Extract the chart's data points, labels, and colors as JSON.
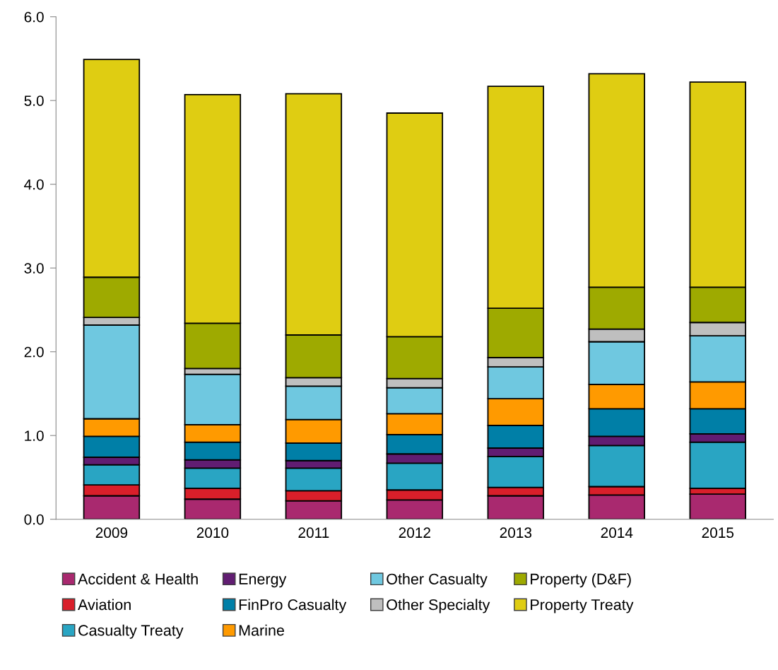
{
  "chart_data": {
    "type": "bar",
    "stacked": true,
    "categories": [
      "2009",
      "2010",
      "2011",
      "2012",
      "2013",
      "2014",
      "2015"
    ],
    "ylim": [
      0,
      6
    ],
    "yticks": [
      {
        "value": 0,
        "label": "0.0"
      },
      {
        "value": 1,
        "label": "1.0"
      },
      {
        "value": 2,
        "label": "2.0"
      },
      {
        "value": 3,
        "label": "3.0"
      },
      {
        "value": 4,
        "label": "4.0"
      },
      {
        "value": 5,
        "label": "5.0"
      },
      {
        "value": 6,
        "label": "6.0"
      }
    ],
    "grid": false,
    "legend": "bottom",
    "series": [
      {
        "name": "Accident & Health",
        "color": "#a9296f",
        "values": [
          0.28,
          0.24,
          0.22,
          0.23,
          0.28,
          0.29,
          0.3
        ]
      },
      {
        "name": "Aviation",
        "color": "#d91f2a",
        "values": [
          0.13,
          0.13,
          0.12,
          0.12,
          0.1,
          0.1,
          0.07
        ]
      },
      {
        "name": "Casualty Treaty",
        "color": "#29a5c3",
        "values": [
          0.24,
          0.24,
          0.27,
          0.32,
          0.37,
          0.49,
          0.55
        ]
      },
      {
        "name": "Energy",
        "color": "#611d72",
        "values": [
          0.09,
          0.1,
          0.09,
          0.11,
          0.1,
          0.11,
          0.1
        ]
      },
      {
        "name": "FinPro Casualty",
        "color": "#007fa7",
        "values": [
          0.25,
          0.21,
          0.21,
          0.23,
          0.27,
          0.33,
          0.3
        ]
      },
      {
        "name": "Marine",
        "color": "#ff9a00",
        "values": [
          0.21,
          0.21,
          0.28,
          0.25,
          0.32,
          0.29,
          0.32
        ]
      },
      {
        "name": "Other Casualty",
        "color": "#6fc8e0",
        "values": [
          1.12,
          0.6,
          0.4,
          0.31,
          0.38,
          0.51,
          0.55
        ]
      },
      {
        "name": "Other Specialty",
        "color": "#bfbfbf",
        "values": [
          0.09,
          0.07,
          0.1,
          0.11,
          0.11,
          0.15,
          0.16
        ]
      },
      {
        "name": "Property (D&F)",
        "color": "#9eaa00",
        "values": [
          0.48,
          0.54,
          0.51,
          0.5,
          0.59,
          0.5,
          0.42
        ]
      },
      {
        "name": "Property Treaty",
        "color": "#dfcd12",
        "values": [
          2.6,
          2.73,
          2.88,
          2.67,
          2.65,
          2.55,
          2.45
        ]
      }
    ]
  }
}
